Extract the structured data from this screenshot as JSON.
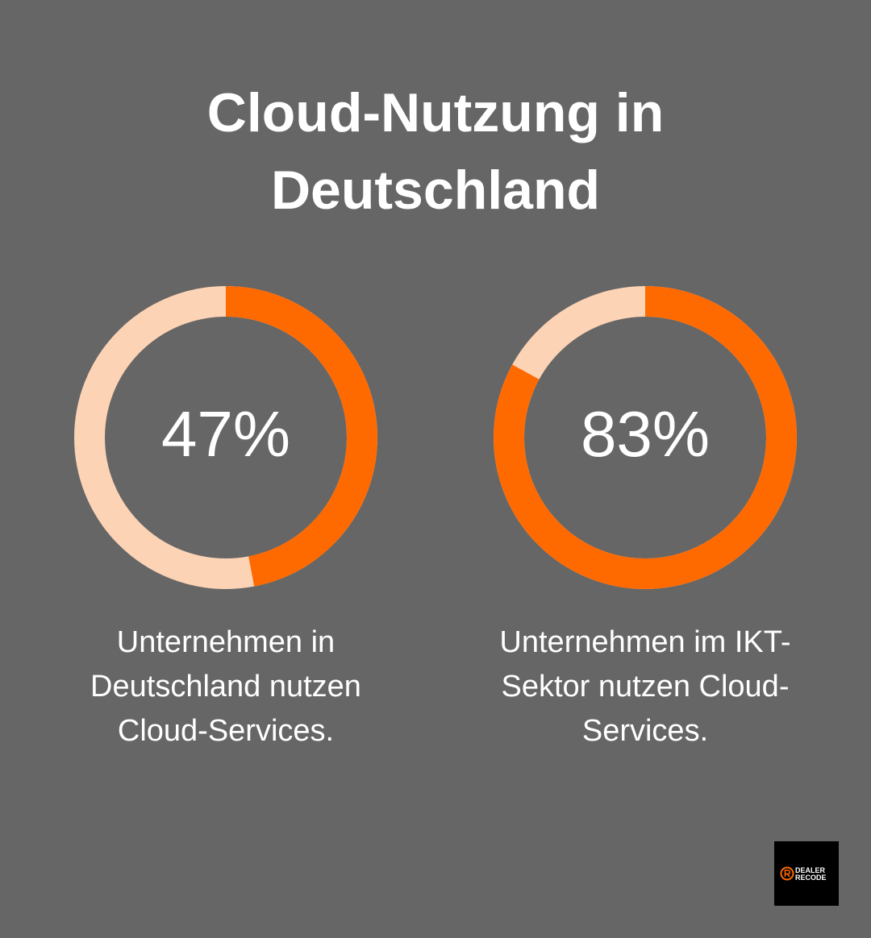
{
  "title": "Cloud-Nutzung in Deutschland",
  "chart_data": [
    {
      "type": "donut",
      "values": [
        47
      ],
      "value_labels": [
        "47%"
      ],
      "color": "#ff6a00",
      "track_color": "#fdd3b5",
      "caption": "Unternehmen in Deutschland nutzen Cloud-Services."
    },
    {
      "type": "donut",
      "values": [
        83
      ],
      "value_labels": [
        "83%"
      ],
      "color": "#ff6a00",
      "track_color": "#fdd3b5",
      "caption": "Unternehmen im IKT-Sektor nutzen Cloud-Services."
    }
  ],
  "logo": {
    "line1": "DEALER",
    "line2": "RECODE"
  }
}
